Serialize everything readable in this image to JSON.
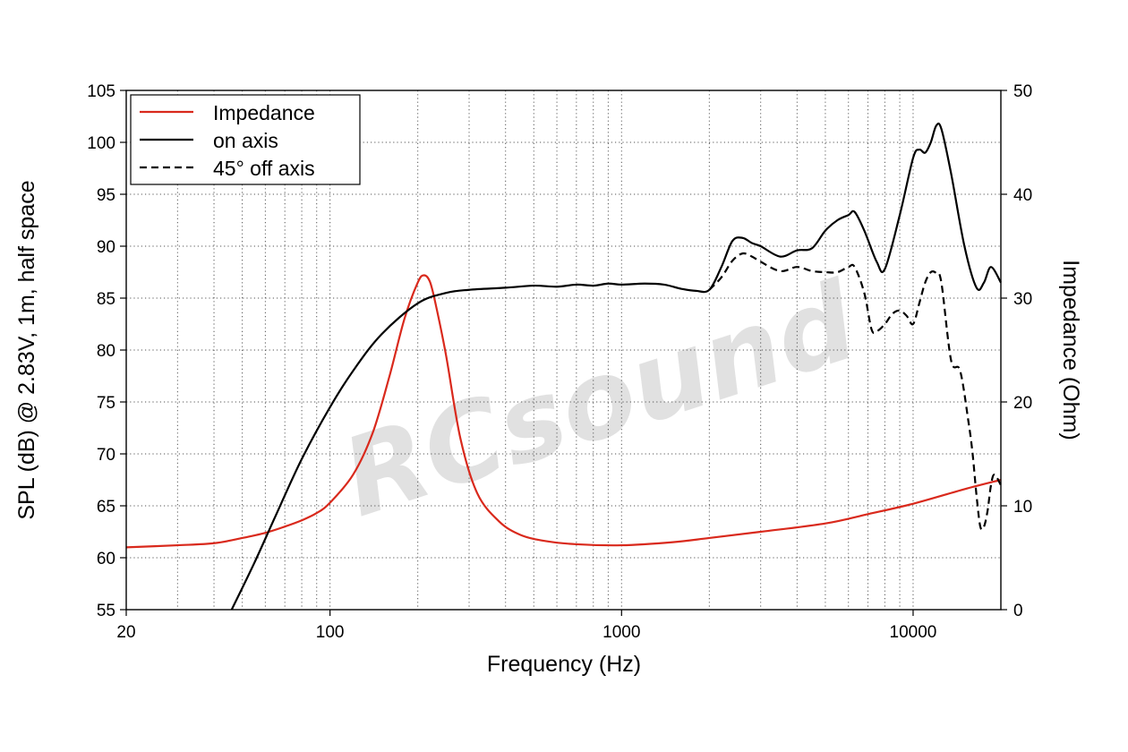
{
  "watermark": "RCsound",
  "chart_data": {
    "type": "line",
    "xlabel": "Frequency (Hz)",
    "ylabel": "SPL (dB) @ 2.83V, 1m, half space",
    "y2label": "Impedance (Ohm)",
    "x_scale": "log",
    "xlim": [
      20,
      20000
    ],
    "ylim": [
      55,
      105
    ],
    "y2lim": [
      0,
      50
    ],
    "x_ticks": [
      20,
      100,
      1000,
      10000
    ],
    "x_tick_labels": [
      "20",
      "100",
      "1000",
      "10000"
    ],
    "y_ticks": [
      55,
      60,
      65,
      70,
      75,
      80,
      85,
      90,
      95,
      100,
      105
    ],
    "y_tick_labels": [
      "55",
      "60",
      "65",
      "70",
      "75",
      "80",
      "85",
      "90",
      "95",
      "100",
      "105"
    ],
    "y2_ticks": [
      0,
      10,
      20,
      30,
      40,
      50
    ],
    "y2_tick_labels": [
      "0",
      "10",
      "20",
      "30",
      "40",
      "50"
    ],
    "grid": true,
    "legend_position": "top-left",
    "series": [
      {
        "name": "Impedance",
        "axis": "right",
        "color": "#d9291c",
        "style": "solid",
        "x": [
          20,
          30,
          40,
          50,
          60,
          70,
          80,
          90,
          100,
          120,
          140,
          160,
          180,
          200,
          210,
          220,
          230,
          250,
          280,
          320,
          380,
          450,
          550,
          700,
          1000,
          1500,
          2000,
          3000,
          5000,
          7000,
          10000,
          15000,
          20000
        ],
        "y": [
          6.0,
          6.2,
          6.4,
          6.9,
          7.4,
          8.0,
          8.6,
          9.3,
          10.3,
          13.0,
          17.0,
          22.5,
          28.0,
          31.5,
          32.2,
          31.6,
          29.5,
          24.5,
          16.5,
          11.2,
          8.5,
          7.2,
          6.6,
          6.3,
          6.2,
          6.5,
          6.9,
          7.5,
          8.3,
          9.2,
          10.2,
          11.6,
          12.5
        ]
      },
      {
        "name": "on axis",
        "axis": "left",
        "color": "#000000",
        "style": "solid",
        "x": [
          46,
          55,
          65,
          80,
          100,
          120,
          150,
          200,
          250,
          300,
          400,
          500,
          600,
          700,
          800,
          900,
          1000,
          1200,
          1400,
          1600,
          1800,
          2000,
          2200,
          2400,
          2600,
          2800,
          3000,
          3500,
          4000,
          4500,
          5000,
          5500,
          6000,
          6300,
          6800,
          7500,
          8000,
          9000,
          10000,
          10500,
          11000,
          11500,
          12000,
          12500,
          13500,
          15000,
          16500,
          17500,
          18500,
          20000
        ],
        "y": [
          55,
          59.5,
          64,
          69.5,
          74.5,
          78,
          81.5,
          84.5,
          85.5,
          85.8,
          86.0,
          86.2,
          86.1,
          86.3,
          86.2,
          86.4,
          86.3,
          86.4,
          86.3,
          85.9,
          85.7,
          85.8,
          88.0,
          90.5,
          90.8,
          90.3,
          90.0,
          89.0,
          89.6,
          89.8,
          91.5,
          92.5,
          93.0,
          93.3,
          91.5,
          88.5,
          87.8,
          93.0,
          98.5,
          99.3,
          99.0,
          100.0,
          101.6,
          101.3,
          97.0,
          90.0,
          86.0,
          86.5,
          88.0,
          86.5
        ]
      },
      {
        "name": "45° off axis",
        "axis": "left",
        "color": "#000000",
        "style": "dashed",
        "x": [
          2000,
          2200,
          2400,
          2600,
          2800,
          3000,
          3500,
          4000,
          4500,
          5000,
          5500,
          6000,
          6300,
          6800,
          7200,
          7500,
          8000,
          8500,
          9000,
          9500,
          10000,
          10500,
          11000,
          11500,
          12000,
          12500,
          13500,
          14500,
          15500,
          16000,
          16500,
          17000,
          17500,
          18000,
          18500,
          19000,
          20000
        ],
        "y": [
          85.8,
          87.0,
          88.6,
          89.3,
          89.0,
          88.5,
          87.6,
          88.0,
          87.6,
          87.5,
          87.5,
          88.0,
          88.0,
          85.5,
          82.0,
          81.8,
          82.5,
          83.5,
          83.8,
          83.3,
          82.5,
          84.5,
          86.5,
          87.5,
          87.4,
          86.5,
          79.0,
          78.0,
          73.0,
          70.0,
          66.0,
          63.0,
          63.0,
          64.5,
          67.0,
          68.0,
          67.0
        ]
      }
    ]
  }
}
